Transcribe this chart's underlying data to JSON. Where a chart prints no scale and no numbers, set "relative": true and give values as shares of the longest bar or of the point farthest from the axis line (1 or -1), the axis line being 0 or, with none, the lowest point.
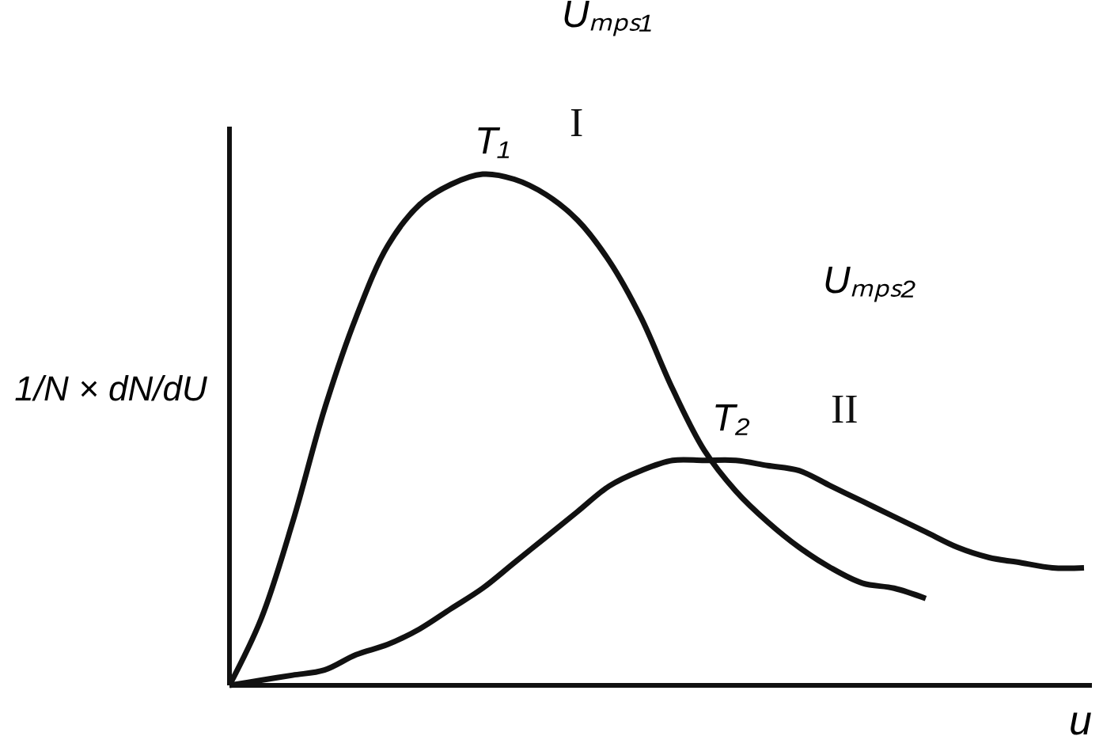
{
  "chart_data": {
    "type": "line",
    "relative": true,
    "xlabel": "u",
    "ylabel": "1/N × dN/dU",
    "categories": [
      null,
      null,
      null,
      null,
      null,
      null,
      null,
      null,
      null,
      null,
      null,
      null,
      null,
      null,
      null,
      null,
      null,
      null,
      null,
      null,
      null,
      null,
      null,
      null,
      null,
      null,
      null,
      null
    ],
    "series": [
      {
        "name": "I",
        "color": "#111111",
        "values": [
          0,
          0.13,
          0.32,
          0.54,
          0.72,
          0.86,
          0.94,
          0.98,
          1.0,
          0.99,
          0.96,
          0.91,
          0.83,
          0.72,
          0.58,
          0.46,
          0.38,
          0.32,
          0.27,
          0.23,
          0.2,
          0.19,
          0.17,
          null,
          null,
          null,
          null,
          null
        ]
      },
      {
        "name": "II",
        "color": "#111111",
        "values": [
          0,
          0.01,
          0.02,
          0.03,
          0.06,
          0.08,
          0.11,
          0.15,
          0.19,
          0.24,
          0.29,
          0.34,
          0.39,
          0.42,
          0.44,
          0.44,
          0.44,
          0.43,
          0.42,
          0.39,
          0.36,
          0.33,
          0.3,
          0.27,
          0.25,
          0.24,
          0.23,
          0.23
        ]
      }
    ],
    "annotations": [
      "T₁",
      "Uₘₚₛ₁",
      "T₂",
      "Uₘₚₛ₂"
    ],
    "marker": "none",
    "line_style": "solid",
    "grid": false,
    "tick_labels": false
  }
}
